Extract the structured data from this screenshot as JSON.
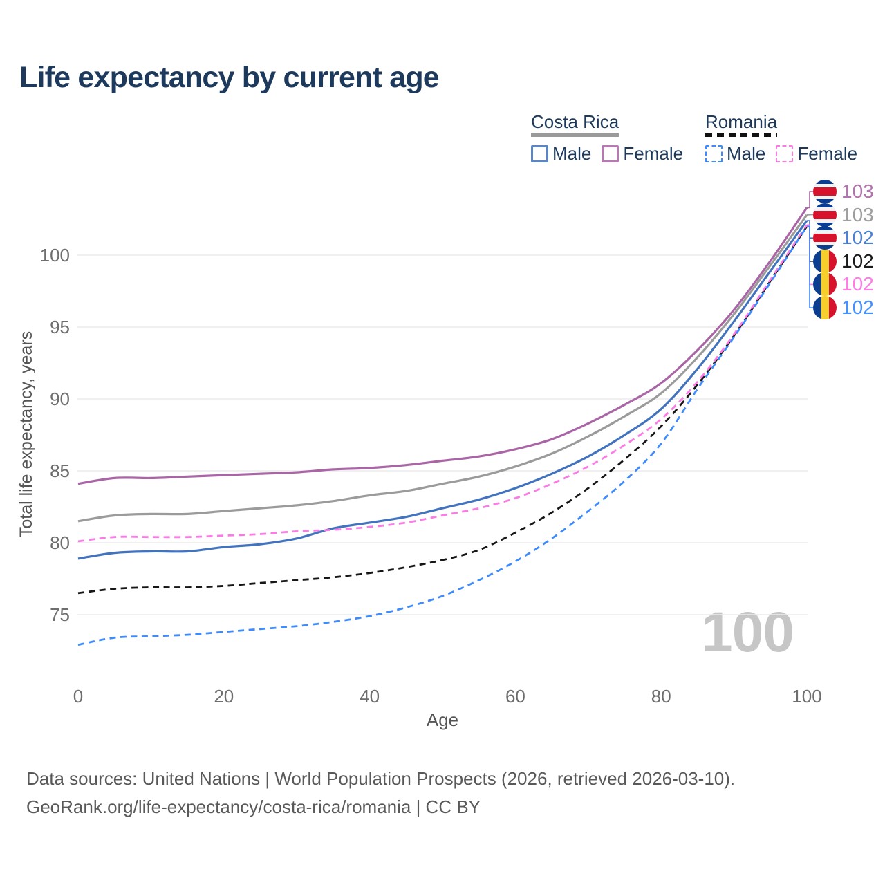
{
  "title": "Life expectancy by current age",
  "legend": {
    "groups": [
      {
        "label": "Costa Rica",
        "line_style": "solid",
        "line_color": "#9a9a9a",
        "items": [
          {
            "label": "Male",
            "color": "#5b85c5",
            "dashed": false
          },
          {
            "label": "Female",
            "color": "#b779b2",
            "dashed": false
          }
        ]
      },
      {
        "label": "Romania",
        "line_style": "dashed",
        "line_color": "#111111",
        "items": [
          {
            "label": "Male",
            "color": "#3d8bfd",
            "dashed": true
          },
          {
            "label": "Female",
            "color": "#fb7ae6",
            "dashed": true
          }
        ]
      }
    ]
  },
  "watermark": "100",
  "end_labels": [
    {
      "value": "103",
      "flag": "costa-rica",
      "color": "#b273ae",
      "series": "Costa Rica Female"
    },
    {
      "value": "103",
      "flag": "costa-rica",
      "color": "#9e9e9e",
      "series": "Costa Rica Both sexes"
    },
    {
      "value": "102",
      "flag": "costa-rica",
      "color": "#4a7fd4",
      "series": "Costa Rica Male"
    },
    {
      "value": "102",
      "flag": "romania",
      "color": "#1a1a1a",
      "series": "Romania Both sexes"
    },
    {
      "value": "102",
      "flag": "romania",
      "color": "#ff7ce8",
      "series": "Romania Female"
    },
    {
      "value": "102",
      "flag": "romania",
      "color": "#4190fd",
      "series": "Romania Male"
    }
  ],
  "footer": {
    "line1": "Data sources: United Nations | World Population Prospects (2026, retrieved 2026-03-10).",
    "line2": "GeoRank.org/life-expectancy/costa-rica/romania | CC BY"
  },
  "chart_data": {
    "type": "line",
    "title": "Life expectancy by current age",
    "xlabel": "Age",
    "ylabel": "Total life expectancy, years",
    "x": [
      0,
      5,
      10,
      15,
      20,
      25,
      30,
      35,
      40,
      45,
      50,
      55,
      60,
      65,
      70,
      75,
      80,
      85,
      90,
      95,
      100
    ],
    "xticks": [
      0,
      20,
      40,
      60,
      80,
      100
    ],
    "yticks": [
      75,
      80,
      85,
      90,
      95,
      100
    ],
    "xlim": [
      0,
      100
    ],
    "ylim": [
      72.5,
      104
    ],
    "grid": "horizontal",
    "legend_position": "top-right",
    "series": [
      {
        "name": "Costa Rica Female",
        "color": "#a965a5",
        "dash": false,
        "values": [
          84.1,
          84.5,
          84.5,
          84.6,
          84.7,
          84.8,
          84.9,
          85.1,
          85.2,
          85.4,
          85.7,
          86.0,
          86.5,
          87.2,
          88.3,
          89.6,
          91.1,
          93.4,
          96.2,
          99.6,
          103.3
        ]
      },
      {
        "name": "Costa Rica Both sexes",
        "color": "#9b9b9b",
        "dash": false,
        "values": [
          81.5,
          81.9,
          82.0,
          82.0,
          82.2,
          82.4,
          82.6,
          82.9,
          83.3,
          83.6,
          84.1,
          84.6,
          85.3,
          86.2,
          87.4,
          88.8,
          90.4,
          92.9,
          95.9,
          99.3,
          102.8
        ]
      },
      {
        "name": "Costa Rica Male",
        "color": "#4273be",
        "dash": false,
        "values": [
          78.9,
          79.3,
          79.4,
          79.4,
          79.7,
          79.9,
          80.3,
          81.0,
          81.4,
          81.8,
          82.4,
          83.0,
          83.8,
          84.8,
          86.0,
          87.5,
          89.3,
          92.1,
          95.4,
          98.9,
          102.4
        ]
      },
      {
        "name": "Romania Both sexes",
        "color": "#161616",
        "dash": true,
        "values": [
          76.5,
          76.8,
          76.9,
          76.9,
          77.0,
          77.2,
          77.4,
          77.6,
          77.9,
          78.3,
          78.8,
          79.5,
          80.7,
          82.1,
          83.8,
          85.8,
          88.1,
          91.0,
          94.4,
          98.2,
          102.0
        ]
      },
      {
        "name": "Romania Female",
        "color": "#fb7ae6",
        "dash": true,
        "values": [
          80.1,
          80.4,
          80.4,
          80.4,
          80.5,
          80.6,
          80.8,
          80.9,
          81.1,
          81.4,
          81.9,
          82.4,
          83.1,
          84.1,
          85.3,
          86.8,
          88.6,
          91.2,
          94.5,
          98.3,
          102.1
        ]
      },
      {
        "name": "Romania Male",
        "color": "#3d8bfd",
        "dash": true,
        "values": [
          72.9,
          73.4,
          73.5,
          73.6,
          73.8,
          74.0,
          74.2,
          74.5,
          74.9,
          75.5,
          76.3,
          77.4,
          78.7,
          80.3,
          82.2,
          84.3,
          86.9,
          90.7,
          94.3,
          98.1,
          102.0
        ]
      }
    ]
  }
}
